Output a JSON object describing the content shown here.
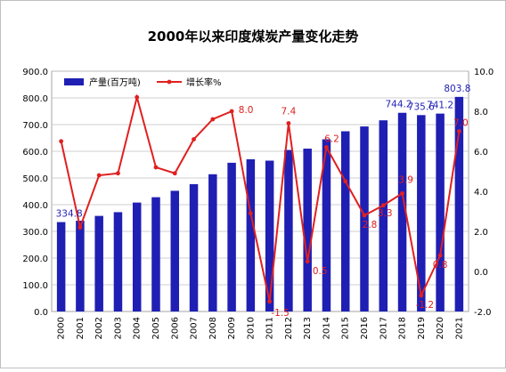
{
  "chart_data": {
    "type": "bar",
    "title": "2000年以来印度煤炭产量变化走势",
    "categories": [
      "2000",
      "2001",
      "2002",
      "2003",
      "2004",
      "2005",
      "2006",
      "2007",
      "2008",
      "2009",
      "2010",
      "2011",
      "2012",
      "2013",
      "2014",
      "2015",
      "2016",
      "2017",
      "2018",
      "2019",
      "2020",
      "2021"
    ],
    "series": [
      {
        "name": "产量(百万吨)",
        "type": "bar",
        "axis": "left",
        "color": "#1f1fb4",
        "values": [
          334.8,
          340,
          358,
          372,
          408,
          428,
          452,
          477,
          514,
          557,
          570,
          565,
          605,
          610,
          645,
          675,
          693,
          716,
          744.2,
          735.6,
          741.2,
          803.8
        ],
        "labels": {
          "0": "334.8",
          "18": "744.2",
          "19": "735.6",
          "20": "741.2",
          "21": "803.8"
        }
      },
      {
        "name": "增长率%",
        "type": "line",
        "axis": "right",
        "color": "#e02020",
        "values": [
          6.5,
          2.2,
          4.8,
          4.9,
          8.7,
          5.2,
          4.9,
          6.6,
          7.6,
          8.0,
          2.9,
          -1.5,
          7.4,
          0.5,
          6.2,
          4.5,
          2.8,
          3.3,
          3.9,
          -1.2,
          0.8,
          7.0
        ],
        "labels": {
          "9": "8.0",
          "11": "-1.5",
          "12": "7.4",
          "13": "0.5",
          "14": "6.2",
          "16": "2.8",
          "17": "3.3",
          "18": "3.9",
          "19": "-1.2",
          "20": "0.8",
          "21": "7.0"
        }
      }
    ],
    "y_left": {
      "min": 0,
      "max": 900,
      "ticks": [
        "0.0",
        "100.0",
        "200.0",
        "300.0",
        "400.0",
        "500.0",
        "600.0",
        "700.0",
        "800.0",
        "900.0"
      ]
    },
    "y_right": {
      "min": -2,
      "max": 10,
      "ticks": [
        "-2.0",
        "0.0",
        "2.0",
        "4.0",
        "6.0",
        "8.0",
        "10.0"
      ]
    },
    "grid": true,
    "legend_position": "top-left"
  }
}
